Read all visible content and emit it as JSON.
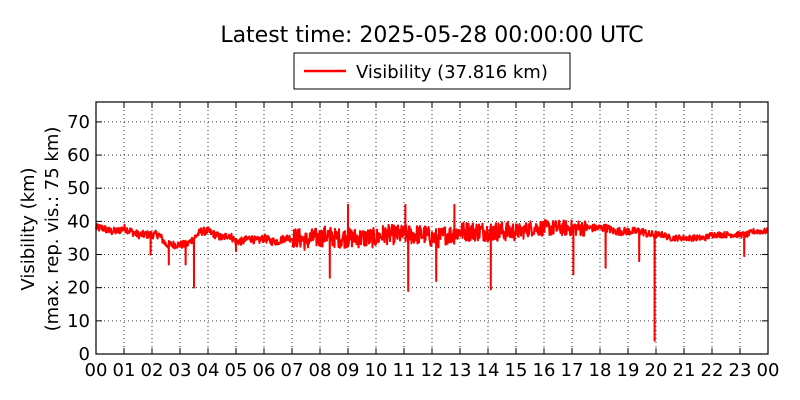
{
  "chart_data": {
    "type": "line",
    "title": "Latest time: 2025-05-28 00:00:00 UTC",
    "ylabel_line1": "Visibility (km)",
    "ylabel_line2": "(max. rep. vis.: 75 km)",
    "xlabel": "",
    "legend": {
      "label": "Visibility (37.816 km)",
      "placement": "top-center",
      "color": "#ff0000"
    },
    "ylim": [
      0,
      76
    ],
    "xlim": [
      0,
      24
    ],
    "yticks": [
      0,
      10,
      20,
      30,
      40,
      50,
      60,
      70
    ],
    "xticks": [
      "00",
      "01",
      "02",
      "03",
      "04",
      "05",
      "06",
      "07",
      "08",
      "09",
      "10",
      "11",
      "12",
      "13",
      "14",
      "15",
      "16",
      "17",
      "18",
      "19",
      "20",
      "21",
      "22",
      "23",
      "00"
    ],
    "grid": true,
    "series": [
      {
        "name": "Visibility (37.816 km)",
        "color": "#ff0000",
        "x": [
          0.0,
          0.25,
          0.5,
          0.75,
          1.0,
          1.25,
          1.5,
          1.75,
          2.0,
          2.25,
          2.5,
          2.75,
          3.0,
          3.25,
          3.5,
          3.75,
          4.0,
          4.25,
          4.5,
          4.75,
          5.0,
          5.25,
          5.5,
          5.75,
          6.0,
          6.25,
          6.5,
          6.75,
          7.0,
          7.25,
          7.5,
          7.75,
          8.0,
          8.25,
          8.5,
          8.75,
          9.0,
          9.25,
          9.5,
          9.75,
          10.0,
          10.25,
          10.5,
          10.75,
          11.0,
          11.25,
          11.5,
          11.75,
          12.0,
          12.25,
          12.5,
          12.75,
          13.0,
          13.25,
          13.5,
          13.75,
          14.0,
          14.25,
          14.5,
          14.75,
          15.0,
          15.25,
          15.5,
          15.75,
          16.0,
          16.25,
          16.5,
          16.75,
          17.0,
          17.25,
          17.5,
          17.75,
          18.0,
          18.25,
          18.5,
          18.75,
          19.0,
          19.25,
          19.5,
          19.75,
          20.0,
          20.25,
          20.5,
          20.75,
          21.0,
          21.25,
          21.5,
          21.75,
          22.0,
          22.25,
          22.5,
          22.75,
          23.0,
          23.25,
          23.5,
          23.75,
          24.0
        ],
        "y": [
          38,
          38,
          37,
          37,
          38,
          37,
          36,
          36,
          36,
          36,
          33,
          33,
          33,
          33,
          35,
          37,
          37,
          36,
          35,
          36,
          34,
          34,
          35,
          34,
          35,
          34,
          34,
          35,
          35,
          35,
          34,
          35,
          35,
          36,
          35,
          35,
          35,
          35,
          35,
          35,
          35,
          36,
          36,
          36,
          36,
          36,
          36,
          36,
          35,
          35,
          36,
          36,
          37,
          37,
          37,
          37,
          37,
          37,
          37,
          37,
          37,
          37,
          38,
          38,
          38,
          38,
          38,
          38,
          38,
          38,
          38,
          38,
          38,
          38,
          37,
          37,
          37,
          37,
          37,
          36,
          36,
          36,
          35,
          35,
          35,
          35,
          35,
          35,
          36,
          36,
          36,
          36,
          36,
          36,
          37,
          37,
          37
        ],
        "extremes": [
          {
            "x": 1.95,
            "y": 30
          },
          {
            "x": 2.6,
            "y": 27
          },
          {
            "x": 3.2,
            "y": 27
          },
          {
            "x": 3.5,
            "y": 20
          },
          {
            "x": 5.0,
            "y": 31
          },
          {
            "x": 8.35,
            "y": 23
          },
          {
            "x": 9.0,
            "y": 45
          },
          {
            "x": 11.05,
            "y": 45
          },
          {
            "x": 11.15,
            "y": 19
          },
          {
            "x": 12.15,
            "y": 22
          },
          {
            "x": 12.8,
            "y": 45
          },
          {
            "x": 14.1,
            "y": 19.5
          },
          {
            "x": 17.05,
            "y": 24
          },
          {
            "x": 18.2,
            "y": 26
          },
          {
            "x": 19.4,
            "y": 28
          },
          {
            "x": 19.95,
            "y": 4
          },
          {
            "x": 23.15,
            "y": 29.5
          }
        ]
      }
    ]
  }
}
